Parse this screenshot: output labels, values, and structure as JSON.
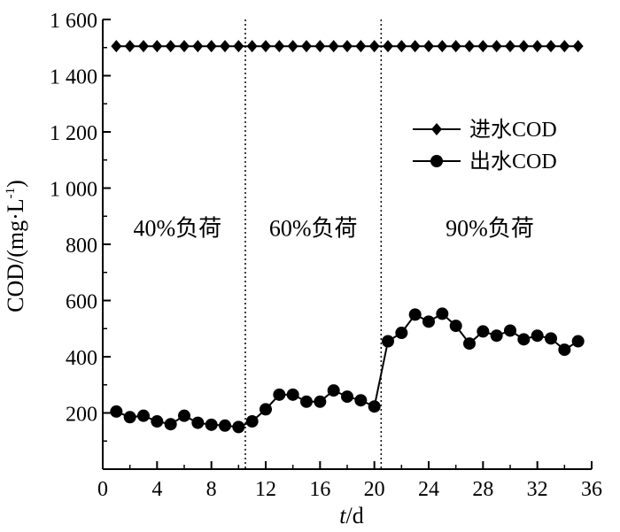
{
  "chart_data": {
    "type": "line",
    "xlabel_italic": "t",
    "xlabel_unit": "/d",
    "ylabel": "COD/(mg·L",
    "ylabel_sup": "-1",
    "ylabel_close": ")",
    "xlim": [
      0,
      36
    ],
    "ylim": [
      0,
      1600
    ],
    "x_ticks": [
      0,
      4,
      8,
      12,
      16,
      20,
      24,
      28,
      32,
      36
    ],
    "x_tick_labels": [
      "0",
      "4",
      "8",
      "12",
      "16",
      "20",
      "24",
      "28",
      "32",
      "36"
    ],
    "y_ticks": [
      200,
      400,
      600,
      800,
      1000,
      1200,
      1400,
      1600
    ],
    "y_tick_labels": [
      "200",
      "400",
      "600",
      "800",
      "1 000",
      "1 200",
      "1 400",
      "1 600"
    ],
    "grid": false,
    "legend_position": "right, upper-middle",
    "phase_dividers": [
      10.5,
      20.5
    ],
    "phases": [
      {
        "label": "40%负荷",
        "x_center": 5.5
      },
      {
        "label": "60%负荷",
        "x_center": 15.5
      },
      {
        "label": "90%负荷",
        "x_center": 28.5
      }
    ],
    "phase_label_y": 830,
    "series": [
      {
        "name": "进水COD",
        "marker": "diamond",
        "color": "#000000",
        "x": [
          1,
          2,
          3,
          4,
          5,
          6,
          7,
          8,
          9,
          10,
          11,
          12,
          13,
          14,
          15,
          16,
          17,
          18,
          19,
          20,
          21,
          22,
          23,
          24,
          25,
          26,
          27,
          28,
          29,
          30,
          31,
          32,
          33,
          34,
          35
        ],
        "y": [
          1505,
          1505,
          1505,
          1505,
          1505,
          1505,
          1505,
          1505,
          1505,
          1505,
          1505,
          1505,
          1505,
          1505,
          1505,
          1505,
          1505,
          1505,
          1505,
          1505,
          1505,
          1505,
          1505,
          1505,
          1505,
          1505,
          1505,
          1505,
          1505,
          1505,
          1505,
          1505,
          1505,
          1505,
          1505
        ]
      },
      {
        "name": "出水COD",
        "marker": "circle",
        "color": "#000000",
        "x": [
          1,
          2,
          3,
          4,
          5,
          6,
          7,
          8,
          9,
          10,
          11,
          12,
          13,
          14,
          15,
          16,
          17,
          18,
          19,
          20,
          21,
          22,
          23,
          24,
          25,
          26,
          27,
          28,
          29,
          30,
          31,
          32,
          33,
          34,
          35
        ],
        "y": [
          205,
          185,
          190,
          170,
          160,
          190,
          165,
          158,
          155,
          150,
          170,
          213,
          265,
          265,
          240,
          240,
          280,
          258,
          245,
          223,
          455,
          485,
          550,
          525,
          553,
          510,
          447,
          490,
          475,
          493,
          462,
          475,
          465,
          425,
          455
        ]
      }
    ]
  }
}
